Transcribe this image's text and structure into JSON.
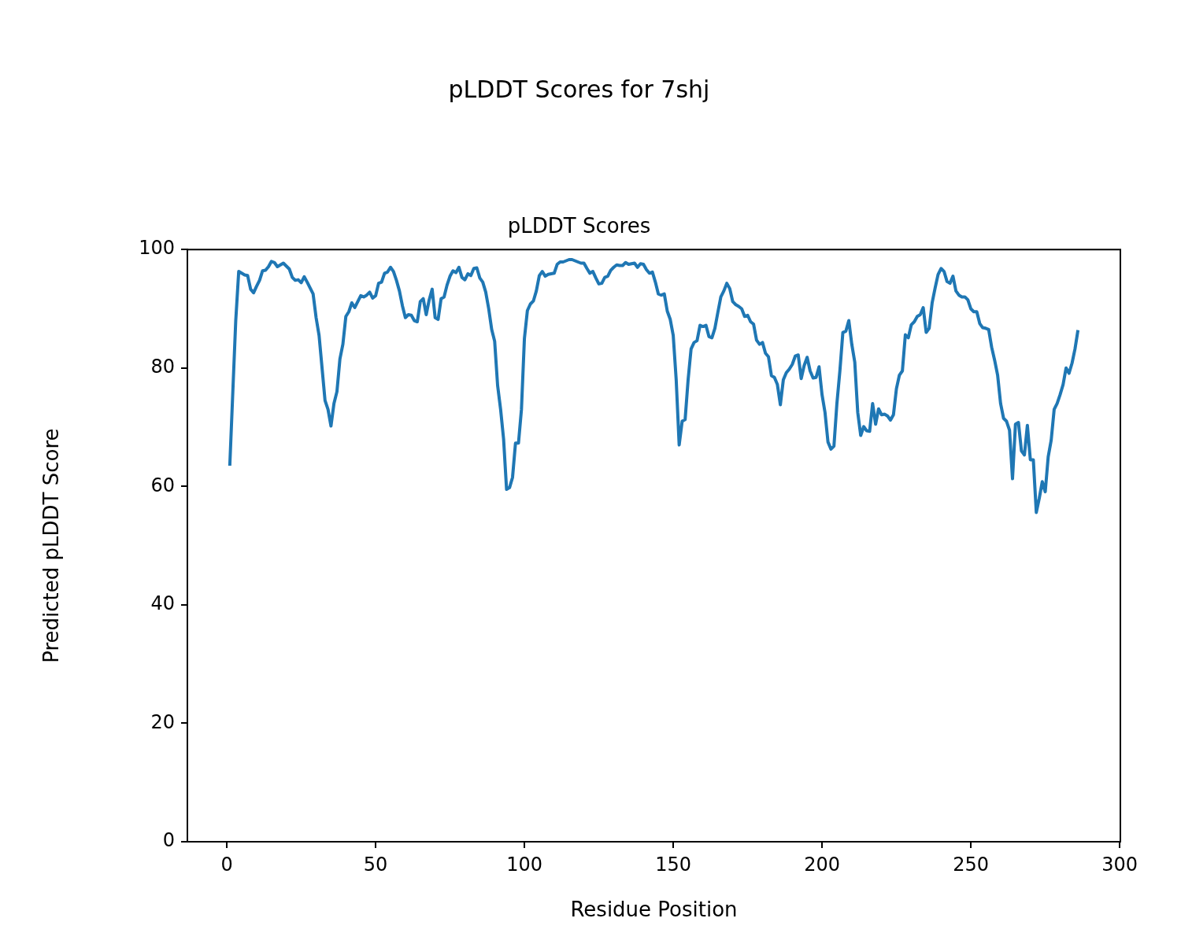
{
  "chart_data": {
    "type": "line",
    "title": "pLDDT Scores for 7shj",
    "subtitle": "pLDDT Scores",
    "xlabel": "Residue Position",
    "ylabel": "Predicted pLDDT Score",
    "xlim": [
      -13.25,
      300.25
    ],
    "xticks": [
      0,
      50,
      100,
      150,
      200,
      250,
      300
    ],
    "ylim": [
      0,
      100
    ],
    "yticks": [
      0,
      20,
      40,
      60,
      80,
      100
    ],
    "x": [
      1,
      3,
      4,
      5,
      6,
      7,
      8,
      9,
      10,
      11,
      12,
      13,
      14,
      15,
      16,
      17,
      18,
      19,
      20,
      21,
      22,
      23,
      24,
      25,
      26,
      27,
      28,
      29,
      30,
      31,
      32,
      33,
      34,
      35,
      36,
      37,
      38,
      39,
      40,
      41,
      42,
      43,
      44,
      45,
      46,
      47,
      48,
      49,
      50,
      51,
      52,
      53,
      54,
      55,
      56,
      57,
      58,
      59,
      60,
      61,
      62,
      63,
      64,
      65,
      66,
      67,
      68,
      69,
      70,
      71,
      72,
      73,
      74,
      75,
      76,
      77,
      78,
      79,
      80,
      81,
      82,
      83,
      84,
      85,
      86,
      87,
      88,
      89,
      90,
      91,
      92,
      93,
      94,
      95,
      96,
      97,
      98,
      99,
      100,
      101,
      102,
      103,
      104,
      105,
      106,
      107,
      108,
      109,
      110,
      111,
      112,
      113,
      114,
      115,
      116,
      117,
      118,
      119,
      120,
      121,
      122,
      123,
      124,
      125,
      126,
      127,
      128,
      129,
      130,
      131,
      132,
      133,
      134,
      135,
      136,
      137,
      138,
      139,
      140,
      141,
      142,
      143,
      144,
      145,
      146,
      147,
      148,
      149,
      150,
      151,
      152,
      153,
      154,
      155,
      156,
      157,
      158,
      159,
      160,
      161,
      162,
      163,
      164,
      165,
      166,
      167,
      168,
      169,
      170,
      171,
      172,
      173,
      174,
      175,
      176,
      177,
      178,
      179,
      180,
      181,
      182,
      183,
      184,
      185,
      186,
      187,
      188,
      189,
      190,
      191,
      192,
      193,
      194,
      195,
      196,
      197,
      198,
      199,
      200,
      201,
      202,
      203,
      204,
      205,
      206,
      207,
      208,
      209,
      210,
      211,
      212,
      213,
      214,
      215,
      216,
      217,
      218,
      219,
      220,
      221,
      222,
      223,
      224,
      225,
      226,
      227,
      228,
      229,
      230,
      231,
      232,
      233,
      234,
      235,
      236,
      237,
      238,
      239,
      240,
      241,
      242,
      243,
      244,
      245,
      246,
      247,
      248,
      249,
      250,
      251,
      252,
      253,
      254,
      255,
      256,
      257,
      258,
      259,
      260,
      261,
      262,
      263,
      264,
      265,
      266,
      267,
      268,
      269,
      270,
      271,
      272,
      273,
      274,
      275,
      276,
      277,
      278,
      279,
      280,
      281,
      282,
      283,
      284,
      285,
      286
    ],
    "series": [
      {
        "color": "#1f77b4",
        "values": [
          63.5,
          88,
          96.3,
          96,
          95.7,
          95.6,
          93.3,
          92.7,
          93.8,
          94.8,
          96.4,
          96.5,
          97.1,
          98,
          97.8,
          97.1,
          97.4,
          97.7,
          97.2,
          96.7,
          95.3,
          94.8,
          94.9,
          94.4,
          95.4,
          94.5,
          93.5,
          92.5,
          88.5,
          85.5,
          80,
          74.5,
          73,
          70.2,
          74,
          76,
          81.5,
          84,
          88.7,
          89.5,
          91,
          90.2,
          91.2,
          92.2,
          92,
          92.3,
          92.8,
          91.8,
          92.2,
          94.3,
          94.5,
          96,
          96.2,
          97,
          96.3,
          94.8,
          93,
          90.5,
          88.5,
          89,
          88.9,
          88,
          87.8,
          91.2,
          91.7,
          89,
          91.5,
          93.3,
          88.5,
          88.2,
          91.7,
          92,
          94,
          95.5,
          96.4,
          96.1,
          97,
          95.3,
          94.9,
          95.9,
          95.6,
          96.8,
          96.9,
          95.2,
          94.5,
          92.8,
          90,
          86.5,
          84.5,
          77,
          73,
          68,
          59.5,
          59.8,
          61.5,
          67.3,
          67.3,
          73,
          85,
          89.7,
          90.8,
          91.3,
          93,
          95.6,
          96.3,
          95.5,
          95.8,
          95.9,
          96,
          97.5,
          97.9,
          97.9,
          98.1,
          98.3,
          98.3,
          98.1,
          97.9,
          97.7,
          97.7,
          96.8,
          96,
          96.3,
          95.2,
          94.2,
          94.3,
          95.3,
          95.5,
          96.5,
          97,
          97.4,
          97.3,
          97.3,
          97.8,
          97.5,
          97.6,
          97.7,
          97,
          97.6,
          97.5,
          96.6,
          96,
          96.2,
          94.5,
          92.5,
          92.3,
          92.5,
          89.6,
          88.2,
          85.5,
          78,
          67,
          71,
          71.3,
          78,
          83.2,
          84.3,
          84.6,
          87.2,
          87,
          87.2,
          85.3,
          85.1,
          86.7,
          89.4,
          92,
          93,
          94.3,
          93.4,
          91.2,
          90.7,
          90.4,
          90,
          88.7,
          88.9,
          87.8,
          87.4,
          84.7,
          84,
          84.3,
          82.5,
          81.9,
          78.7,
          78.4,
          77.2,
          73.8,
          78,
          79.2,
          79.8,
          80.6,
          82,
          82.2,
          78.2,
          80.4,
          81.8,
          79.5,
          78.3,
          78.4,
          80.2,
          75.5,
          72.5,
          67.5,
          66.3,
          66.8,
          74,
          79.5,
          86,
          86.2,
          88,
          84,
          81,
          72.5,
          68.6,
          70.1,
          69.4,
          69.3,
          74,
          70.5,
          73.1,
          72.1,
          72.2,
          71.9,
          71.2,
          72.1,
          76.5,
          78.8,
          79.5,
          85.6,
          85.1,
          87.3,
          87.8,
          88.7,
          89,
          90.2,
          86,
          86.7,
          91,
          93.5,
          95.8,
          96.8,
          96.3,
          94.6,
          94.3,
          95.5,
          93,
          92.3,
          92,
          92,
          91.5,
          90,
          89.5,
          89.5,
          87.5,
          86.8,
          86.7,
          86.5,
          83.5,
          81.3,
          78.8,
          74,
          71.5,
          71,
          69.5,
          61.3,
          70.5,
          70.8,
          66,
          65.3,
          70.3,
          64.5,
          64.5,
          55.6,
          58,
          60.8,
          59.1,
          65,
          67.8,
          73,
          74,
          75.5,
          77.2,
          80,
          79.1,
          80.8,
          83.2,
          86.4
        ]
      }
    ]
  }
}
